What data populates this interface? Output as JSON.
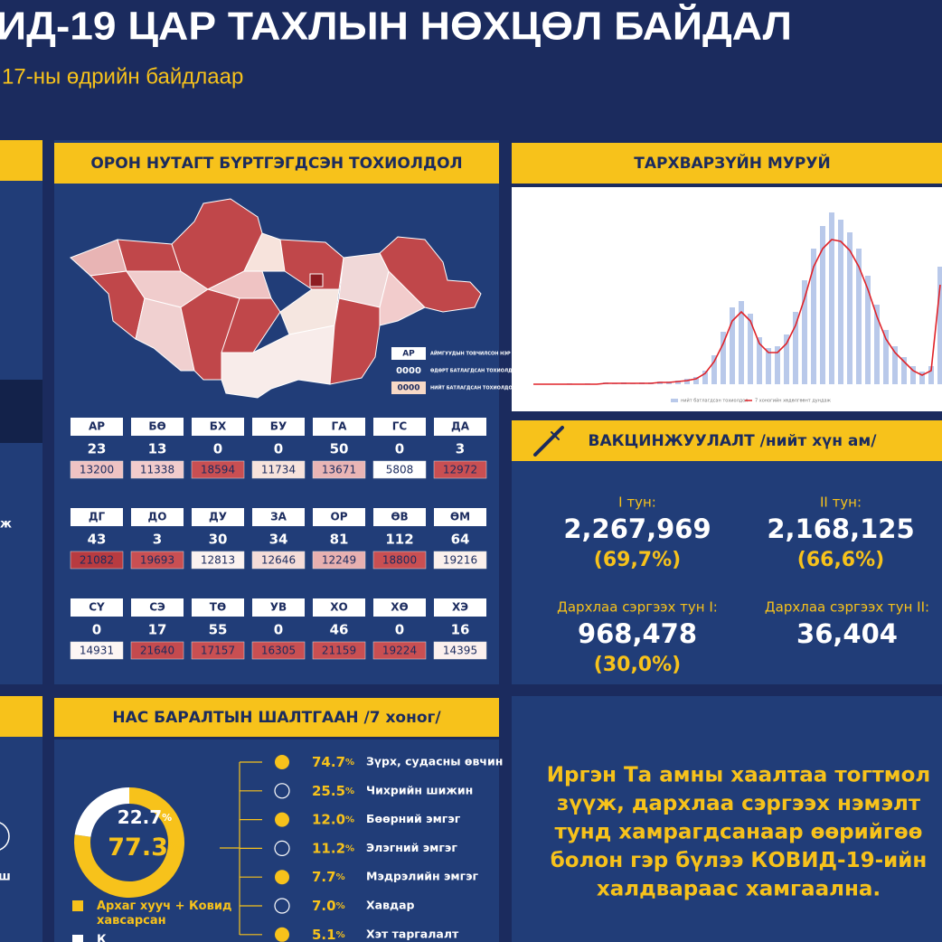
{
  "header": {
    "title": "ИД-19 ЦАР ТАХЛЫН НӨХЦӨЛ БАЙДАЛ",
    "subtitle": "17-ны өдрийн байдлаар"
  },
  "left_panel": {
    "fragments": [
      "ж",
      "ш"
    ]
  },
  "regional": {
    "title": "ОРОН НУТАГТ БҮРТГЭГДСЭН ТОХИОЛДОЛ",
    "legend": {
      "abbr_sample": "АР",
      "abbr_desc": "АЙМГУУДЫН ТОВЧИЛСОН НЭР",
      "daily_sample": "0000",
      "daily_desc": "ӨДӨРТ БАТЛАГДСАН ТОХИОЛДОЛ",
      "total_sample": "0000",
      "total_desc": "НИЙТ БАТЛАГДСАН ТОХИОЛДОЛ"
    },
    "provinces": [
      {
        "code": "АР",
        "daily": 23,
        "total": 13200,
        "color": "#efc3c3"
      },
      {
        "code": "БӨ",
        "daily": 13,
        "total": 11338,
        "color": "#f2cccc"
      },
      {
        "code": "БХ",
        "daily": 0,
        "total": 18594,
        "color": "#c94f52"
      },
      {
        "code": "БУ",
        "daily": 0,
        "total": 11734,
        "color": "#f7e3dc"
      },
      {
        "code": "ГА",
        "daily": 50,
        "total": 13671,
        "color": "#e9b5b5"
      },
      {
        "code": "ГС",
        "daily": 0,
        "total": 5808,
        "color": "#ffffff"
      },
      {
        "code": "ДА",
        "daily": 3,
        "total": 12972,
        "color": "#c94f52"
      },
      {
        "code": "ДГ",
        "daily": 43,
        "total": 21082,
        "color": "#b83b40"
      },
      {
        "code": "ДО",
        "daily": 3,
        "total": 19693,
        "color": "#c94f52"
      },
      {
        "code": "ДУ",
        "daily": 30,
        "total": 12813,
        "color": "#fbf2f0"
      },
      {
        "code": "ЗА",
        "daily": 34,
        "total": 12646,
        "color": "#f5dcd8"
      },
      {
        "code": "ОР",
        "daily": 81,
        "total": 12249,
        "color": "#e8b0b0"
      },
      {
        "code": "ӨВ",
        "daily": 112,
        "total": 18800,
        "color": "#c94f52"
      },
      {
        "code": "ӨМ",
        "daily": 64,
        "total": 19216,
        "color": "#fbf0ec"
      },
      {
        "code": "СҮ",
        "daily": 0,
        "total": 14931,
        "color": "#fdf6f4"
      },
      {
        "code": "СЭ",
        "daily": 17,
        "total": 21640,
        "color": "#c44a4e"
      },
      {
        "code": "ТӨ",
        "daily": 55,
        "total": 17157,
        "color": "#c94f52"
      },
      {
        "code": "УВ",
        "daily": 0,
        "total": 16305,
        "color": "#c94f52"
      },
      {
        "code": "ХО",
        "daily": 46,
        "total": 21159,
        "color": "#c94f52"
      },
      {
        "code": "ХӨ",
        "daily": 0,
        "total": 19224,
        "color": "#c94f52"
      },
      {
        "code": "ХЭ",
        "daily": 16,
        "total": 14395,
        "color": "#fbf0ee"
      }
    ]
  },
  "chart_data": [
    {
      "type": "curve",
      "title": "ТАРХВАРЗҮЙН МУРУЙ",
      "ylim": [
        0,
        220
      ],
      "series": [
        {
          "name": "нийт батлагдсан тохиолдол",
          "color": "#b9c9ea",
          "mark": "bar",
          "values": [
            0,
            0,
            0,
            0,
            1,
            0,
            1,
            0,
            2,
            1,
            2,
            1,
            2,
            2,
            3,
            3,
            4,
            6,
            8,
            15,
            32,
            58,
            85,
            92,
            78,
            52,
            40,
            42,
            55,
            80,
            115,
            150,
            175,
            190,
            182,
            168,
            150,
            120,
            88,
            60,
            42,
            30,
            20,
            14,
            20,
            130
          ]
        },
        {
          "name": "7 хоногийн хөдөлгөөнт дундаж",
          "color": "#e02228",
          "mark": "line",
          "values": [
            0,
            0,
            0,
            0,
            0,
            0,
            0,
            0,
            1,
            1,
            1,
            1,
            1,
            1,
            2,
            2,
            3,
            4,
            6,
            12,
            25,
            45,
            70,
            80,
            70,
            45,
            35,
            35,
            45,
            65,
            95,
            130,
            150,
            160,
            158,
            148,
            130,
            105,
            75,
            50,
            35,
            25,
            15,
            10,
            15,
            110
          ]
        }
      ]
    },
    {
      "type": "donut",
      "categories": [
        "Архаг хууч + Ковид хавсарсан",
        "К"
      ],
      "values": [
        77.3,
        22.7
      ],
      "colors": [
        "#f7c21b",
        "#ffffff"
      ],
      "unit": "%"
    }
  ],
  "vaccination": {
    "title": "ВАКЦИНЖУУЛАЛТ /нийт хүн ам/",
    "doses": [
      {
        "label": "I тун:",
        "count": 2267969,
        "count_label": "2,267,969",
        "share": 69.7,
        "share_label": "(69,7%)"
      },
      {
        "label": "II тун:",
        "count": 2168125,
        "count_label": "2,168,125",
        "share": 66.6,
        "share_label": "(66,6%)"
      },
      {
        "label": "Дархлаа сэргээх тун I:",
        "count": 968478,
        "count_label": "968,478",
        "share": 30.0,
        "share_label": "(30,0%)"
      },
      {
        "label": "Дархлаа сэргээх тун II:",
        "count": 36404,
        "count_label": "36,404"
      }
    ]
  },
  "deaths": {
    "title": "НАС БАРАЛТЫН ШАЛТГААН /7 хоног/",
    "unit": "%",
    "causes": [
      {
        "value": 74.7,
        "value_label": "74.7",
        "name": "Зүрх, судасны өвчин"
      },
      {
        "value": 25.5,
        "value_label": "25.5",
        "name": "Чихрийн шижин"
      },
      {
        "value": 12.0,
        "value_label": "12.0",
        "name": "Бөөрний эмгэг"
      },
      {
        "value": 11.2,
        "value_label": "11.2",
        "name": "Элэгний эмгэг"
      },
      {
        "value": 7.7,
        "value_label": "7.7",
        "name": "Мэдрэлийн эмгэг"
      },
      {
        "value": 7.0,
        "value_label": "7.0",
        "name": "Хавдар"
      },
      {
        "value": 5.1,
        "value_label": "5.1",
        "name": "Хэт таргалалт"
      }
    ]
  },
  "message": {
    "lines": [
      "Иргэн Та амны хаалтаа тогтмол",
      "зүүж, дархлаа сэргээх нэмэлт",
      "тунд хамрагдсанаар өөрийгөө",
      "болон гэр бүлээ КОВИД-19-ийн",
      "халдвараас хамгаална."
    ]
  }
}
